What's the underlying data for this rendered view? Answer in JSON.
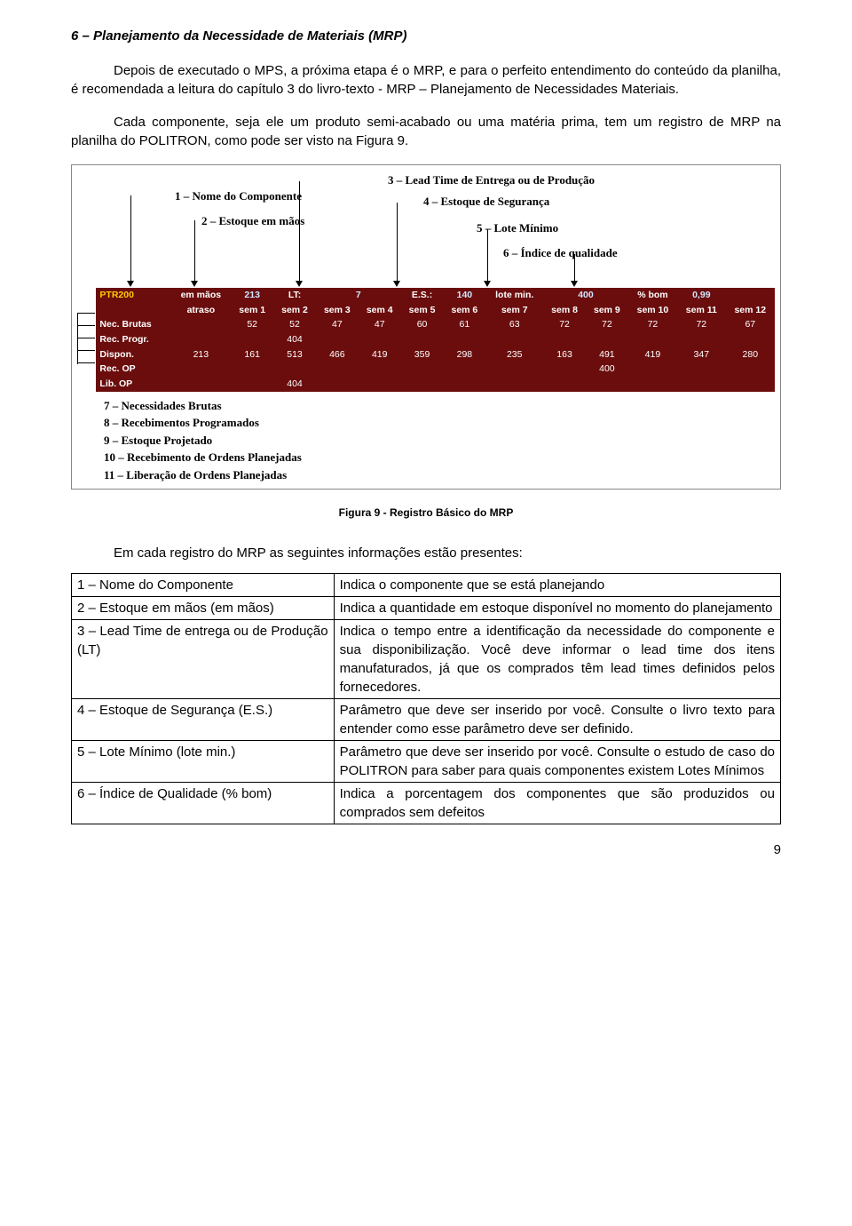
{
  "section_title": "6 – Planejamento da Necessidade de Materiais (MRP)",
  "paragraphs": [
    "Depois de executado o MPS, a próxima etapa é o MRP, e para o perfeito entendimento do conteúdo da planilha, é recomendada a leitura do capítulo 3 do livro-texto - MRP – Planejamento de Necessidades Materiais.",
    "Cada componente, seja ele um produto semi-acabado ou uma matéria prima, tem um registro de MRP na planilha do POLITRON, como pode ser visto na Figura 9."
  ],
  "top_annotations": {
    "a1": "1 – Nome do Componente",
    "a2": "2 – Estoque em mãos",
    "a3": "3 – Lead Time de Entrega ou de Produção",
    "a4": "4 – Estoque de Segurança",
    "a5": "5 – Lote Mínimo",
    "a6": "6 – Índice de qualidade"
  },
  "mrp_table": {
    "param_row": {
      "ptr": "PTR200",
      "em_maos_lbl": "em mãos",
      "em_maos_val": "213",
      "lt_lbl": "LT:",
      "lt_val": "7",
      "es_lbl": "E.S.:",
      "es_val": "140",
      "lote_lbl": "lote min.",
      "lote_val": "400",
      "pbom_lbl": "% bom",
      "pbom_val": "0,99"
    },
    "periods": [
      "atraso",
      "sem 1",
      "sem 2",
      "sem 3",
      "sem 4",
      "sem 5",
      "sem 6",
      "sem 7",
      "sem 8",
      "sem 9",
      "sem 10",
      "sem 11",
      "sem 12"
    ],
    "rows": [
      {
        "label": "Nec. Brutas",
        "vals": [
          "",
          "52",
          "52",
          "47",
          "47",
          "60",
          "61",
          "63",
          "72",
          "72",
          "72",
          "72",
          "67"
        ]
      },
      {
        "label": "Rec. Progr.",
        "vals": [
          "",
          "",
          "404",
          "",
          "",
          "",
          "",
          "",
          "",
          "",
          "",
          "",
          ""
        ]
      },
      {
        "label": "Dispon.",
        "vals": [
          "213",
          "161",
          "513",
          "466",
          "419",
          "359",
          "298",
          "235",
          "163",
          "491",
          "419",
          "347",
          "280"
        ]
      },
      {
        "label": "Rec. OP",
        "vals": [
          "",
          "",
          "",
          "",
          "",
          "",
          "",
          "",
          "",
          "400",
          "",
          "",
          ""
        ]
      },
      {
        "label": "Lib. OP",
        "vals": [
          "",
          "",
          "404",
          "",
          "",
          "",
          "",
          "",
          "",
          "",
          "",
          "",
          ""
        ]
      }
    ]
  },
  "bottom_annotations": [
    "7 – Necessidades Brutas",
    "8 – Recebimentos Programados",
    "9 – Estoque Projetado",
    "10 – Recebimento de Ordens Planejadas",
    "11 – Liberação de Ordens Planejadas"
  ],
  "caption": "Figura 9 - Registro Básico do MRP",
  "list_intro": "Em cada registro do MRP as seguintes informações estão presentes:",
  "definitions": [
    {
      "k": "1 – Nome do Componente",
      "v": "Indica o componente que se está planejando"
    },
    {
      "k": "2 – Estoque em mãos (em mãos)",
      "v": "Indica a quantidade em estoque disponível no momento do planejamento"
    },
    {
      "k": "3 – Lead Time de entrega ou de Produção (LT)",
      "v": "Indica o tempo entre a identificação da necessidade do componente e sua disponibilização. Você deve informar o lead time dos itens manufaturados, já que os comprados têm lead times definidos pelos fornecedores."
    },
    {
      "k": "4 – Estoque de Segurança (E.S.)",
      "v": "Parâmetro que deve ser inserido por você. Consulte o livro texto para entender como esse parâmetro deve ser definido."
    },
    {
      "k": "5 – Lote Mínimo (lote min.)",
      "v": "Parâmetro que deve ser inserido por você. Consulte o estudo de caso do POLITRON para saber para quais componentes existem Lotes Mínimos"
    },
    {
      "k": "6 – Índice de Qualidade (% bom)",
      "v": "Indica a porcentagem dos componentes que são produzidos ou comprados sem defeitos"
    }
  ],
  "page_number": "9"
}
